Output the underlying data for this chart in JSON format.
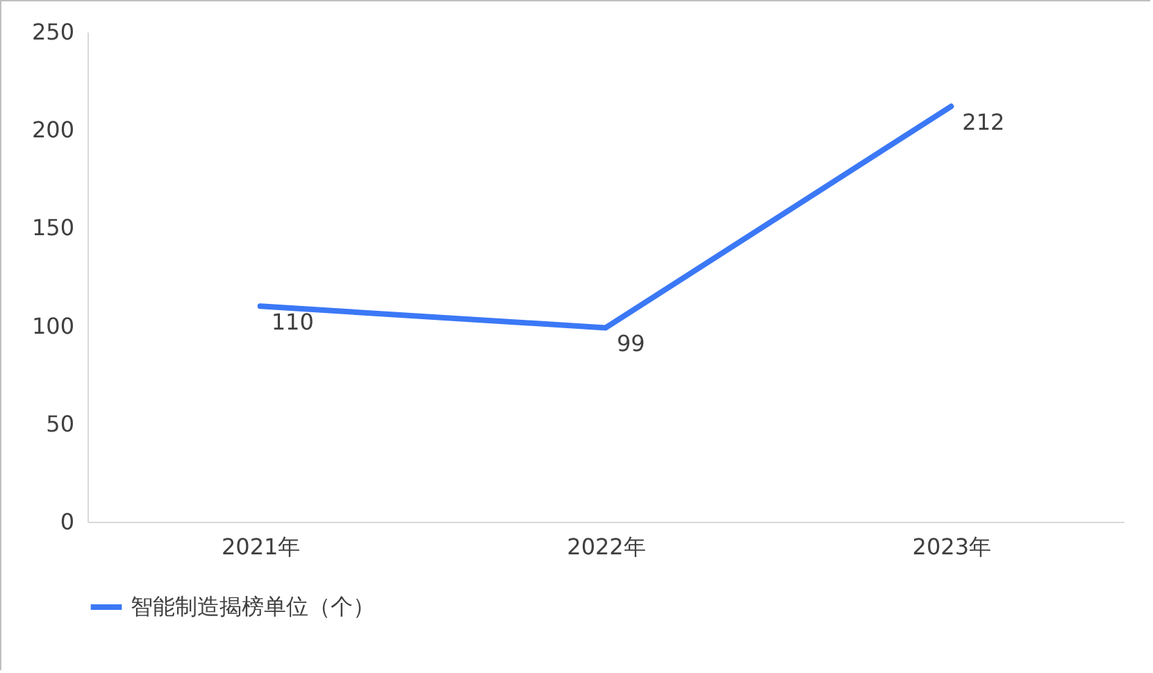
{
  "chart_data": {
    "type": "line",
    "categories": [
      "2021年",
      "2022年",
      "2023年"
    ],
    "series": [
      {
        "name": "智能制造揭榜单位（个）",
        "color": "#3b78f6",
        "values": [
          110,
          99,
          212
        ]
      }
    ],
    "ylim": [
      0,
      250
    ],
    "yticks": [
      0,
      50,
      100,
      150,
      200,
      250
    ],
    "data_labels": true,
    "legend": "bottom"
  }
}
